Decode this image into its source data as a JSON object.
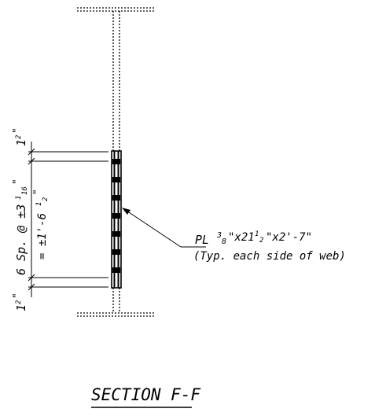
{
  "drawing": {
    "title": "SECTION F-F",
    "plate_label": {
      "line1_prefix": "PL",
      "line1_frac_num": "3",
      "line1_frac_den": "8",
      "line1_a": "\"x21",
      "line1_b_num": "1",
      "line1_b_den": "2",
      "line1_c": "\"x2'-7\"",
      "line2": "(Typ. each side of web)"
    },
    "dims": {
      "top_edge_whole": "1",
      "top_edge_frac": "2",
      "top_edge_suffix": "\"",
      "spacing_text": "6 Sp. @ ±3",
      "spacing_num": "1",
      "spacing_den": "16",
      "spacing_suffix": "\"",
      "total_text": "= ±1'-6",
      "total_num": "1",
      "total_den": "2",
      "total_suffix": "\"",
      "bottom_edge_whole": "1",
      "bottom_edge_frac": "2",
      "bottom_edge_suffix": "\""
    }
  }
}
